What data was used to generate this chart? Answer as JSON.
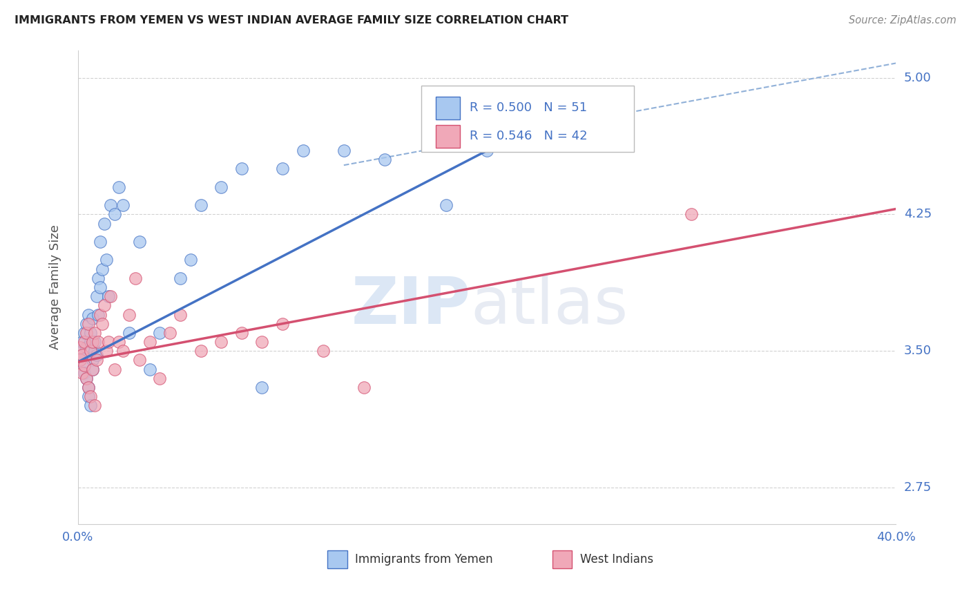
{
  "title": "IMMIGRANTS FROM YEMEN VS WEST INDIAN AVERAGE FAMILY SIZE CORRELATION CHART",
  "source": "Source: ZipAtlas.com",
  "ylabel": "Average Family Size",
  "watermark_zip": "ZIP",
  "watermark_atlas": "atlas",
  "xlim": [
    0.0,
    0.4
  ],
  "ylim": [
    2.55,
    5.15
  ],
  "yticks": [
    2.75,
    3.5,
    4.25,
    5.0
  ],
  "xticks": [
    0.0,
    0.05,
    0.1,
    0.15,
    0.2,
    0.25,
    0.3,
    0.35,
    0.4
  ],
  "xtick_labels": [
    "0.0%",
    "",
    "",
    "",
    "",
    "",
    "",
    "",
    "40.0%"
  ],
  "legend_R1": "0.500",
  "legend_N1": "51",
  "legend_R2": "0.546",
  "legend_N2": "42",
  "color_yemen": "#a8c8f0",
  "color_west_indian": "#f0a8b8",
  "color_yemen_line": "#4472c4",
  "color_west_indian_line": "#d45070",
  "color_dashed": "#90b0d8",
  "title_color": "#222222",
  "label_color": "#4472c4",
  "background_color": "#ffffff",
  "yemen_x": [
    0.001,
    0.001,
    0.002,
    0.002,
    0.003,
    0.003,
    0.003,
    0.004,
    0.004,
    0.004,
    0.005,
    0.005,
    0.005,
    0.006,
    0.006,
    0.006,
    0.007,
    0.007,
    0.007,
    0.008,
    0.008,
    0.009,
    0.009,
    0.01,
    0.01,
    0.011,
    0.011,
    0.012,
    0.013,
    0.014,
    0.015,
    0.016,
    0.018,
    0.02,
    0.022,
    0.025,
    0.03,
    0.035,
    0.04,
    0.05,
    0.055,
    0.06,
    0.07,
    0.08,
    0.09,
    0.1,
    0.11,
    0.13,
    0.15,
    0.18,
    0.2
  ],
  "yemen_y": [
    3.5,
    3.45,
    3.55,
    3.48,
    3.42,
    3.38,
    3.6,
    3.35,
    3.52,
    3.65,
    3.3,
    3.25,
    3.7,
    3.2,
    3.6,
    3.55,
    3.45,
    3.4,
    3.68,
    3.5,
    3.55,
    3.8,
    3.48,
    3.7,
    3.9,
    3.85,
    4.1,
    3.95,
    4.2,
    4.0,
    3.8,
    4.3,
    4.25,
    4.4,
    4.3,
    3.6,
    4.1,
    3.4,
    3.6,
    3.9,
    4.0,
    4.3,
    4.4,
    4.5,
    3.3,
    4.5,
    4.6,
    4.6,
    4.55,
    4.3,
    4.6
  ],
  "west_indian_x": [
    0.001,
    0.001,
    0.002,
    0.002,
    0.003,
    0.003,
    0.004,
    0.004,
    0.005,
    0.005,
    0.006,
    0.006,
    0.007,
    0.007,
    0.008,
    0.008,
    0.009,
    0.01,
    0.011,
    0.012,
    0.013,
    0.014,
    0.015,
    0.016,
    0.018,
    0.02,
    0.022,
    0.025,
    0.028,
    0.03,
    0.035,
    0.04,
    0.045,
    0.05,
    0.06,
    0.07,
    0.08,
    0.09,
    0.1,
    0.12,
    0.14,
    0.3
  ],
  "west_indian_y": [
    3.52,
    3.45,
    3.48,
    3.38,
    3.42,
    3.55,
    3.35,
    3.6,
    3.3,
    3.65,
    3.25,
    3.5,
    3.4,
    3.55,
    3.2,
    3.6,
    3.45,
    3.55,
    3.7,
    3.65,
    3.75,
    3.5,
    3.55,
    3.8,
    3.4,
    3.55,
    3.5,
    3.7,
    3.9,
    3.45,
    3.55,
    3.35,
    3.6,
    3.7,
    3.5,
    3.55,
    3.6,
    3.55,
    3.65,
    3.5,
    3.3,
    4.25
  ],
  "blue_line_x0": 0.0,
  "blue_line_y0": 3.44,
  "blue_line_x1": 0.2,
  "blue_line_y1": 4.6,
  "pink_line_x0": 0.0,
  "pink_line_y0": 3.44,
  "pink_line_x1": 0.4,
  "pink_line_y1": 4.28,
  "dash_line_x0": 0.13,
  "dash_line_y0": 4.52,
  "dash_line_x1": 0.4,
  "dash_line_y1": 5.08
}
